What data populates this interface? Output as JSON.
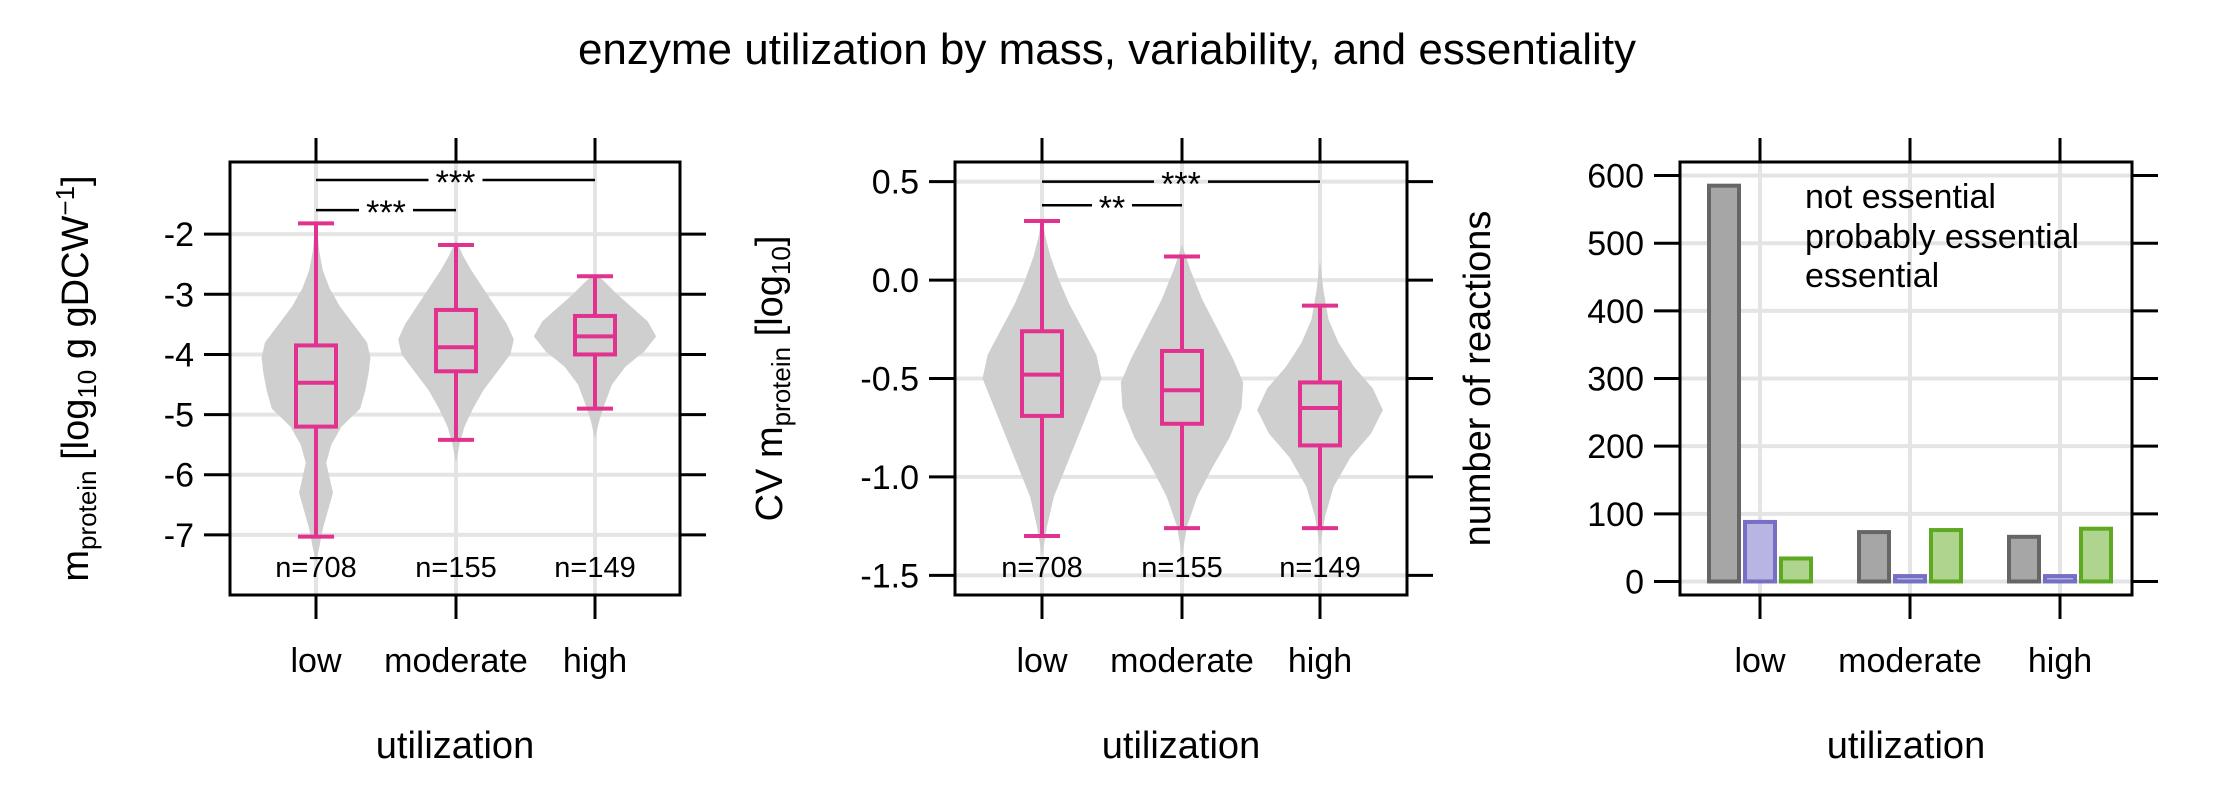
{
  "title": "enzyme utilization by mass, variability, and essentiality",
  "colors": {
    "box": "#e0328e",
    "violin": "#cfcfcf",
    "grid": "#e4e4e4",
    "not_essential": "#666666",
    "not_essential_fill": "#a6a6a6",
    "probably_essential": "#7670c4",
    "probably_essential_fill": "#b8b5e2",
    "essential": "#5ea822",
    "essential_fill": "#aed48e"
  },
  "chart_data": [
    {
      "type": "box",
      "xlabel": "utilization",
      "ylabel": "m",
      "ylabel_sub": "protein",
      "ylabel_rest": " [log",
      "ylabel_sub2": "10",
      "ylabel_tail": " g gDCW",
      "ylabel_sup": "−1",
      "ylabel_close": "]",
      "ylim": [
        -8,
        -0.8
      ],
      "yticks": [
        -2,
        -3,
        -4,
        -5,
        -6,
        -7
      ],
      "ytick_labels": [
        "-2",
        "-3",
        "-4",
        "-5",
        "-6",
        "-7"
      ],
      "categories": [
        "low",
        "moderate",
        "high"
      ],
      "counts": [
        "n=708",
        "n=155",
        "n=149"
      ],
      "boxes": [
        {
          "min": -7.03,
          "q1": -5.2,
          "median": -4.47,
          "q3": -3.85,
          "max": -1.82
        },
        {
          "min": -5.42,
          "q1": -4.28,
          "median": -3.88,
          "q3": -3.26,
          "max": -2.18
        },
        {
          "min": -4.9,
          "q1": -4.0,
          "median": -3.7,
          "q3": -3.36,
          "max": -2.7
        }
      ],
      "violins": [
        {
          "lo": -7.45,
          "hi": -1.8,
          "profile": [
            [
              -7.45,
              0
            ],
            [
              -7.2,
              0.04
            ],
            [
              -6.9,
              0.08
            ],
            [
              -6.6,
              0.14
            ],
            [
              -6.3,
              0.2
            ],
            [
              -6.05,
              0.16
            ],
            [
              -5.8,
              0.12
            ],
            [
              -5.5,
              0.18
            ],
            [
              -5.2,
              0.3
            ],
            [
              -4.9,
              0.52
            ],
            [
              -4.6,
              0.58
            ],
            [
              -4.3,
              0.62
            ],
            [
              -4.05,
              0.64
            ],
            [
              -3.8,
              0.6
            ],
            [
              -3.5,
              0.44
            ],
            [
              -3.2,
              0.28
            ],
            [
              -2.9,
              0.16
            ],
            [
              -2.6,
              0.08
            ],
            [
              -2.3,
              0.04
            ],
            [
              -2.0,
              0.02
            ],
            [
              -1.8,
              0
            ]
          ]
        },
        {
          "lo": -5.8,
          "hi": -2.1,
          "profile": [
            [
              -5.8,
              0
            ],
            [
              -5.5,
              0.04
            ],
            [
              -5.2,
              0.1
            ],
            [
              -4.9,
              0.2
            ],
            [
              -4.6,
              0.32
            ],
            [
              -4.3,
              0.48
            ],
            [
              -4.0,
              0.64
            ],
            [
              -3.75,
              0.68
            ],
            [
              -3.5,
              0.6
            ],
            [
              -3.2,
              0.46
            ],
            [
              -2.9,
              0.32
            ],
            [
              -2.6,
              0.18
            ],
            [
              -2.35,
              0.08
            ],
            [
              -2.1,
              0
            ]
          ]
        },
        {
          "lo": -5.4,
          "hi": -2.65,
          "profile": [
            [
              -5.4,
              0
            ],
            [
              -5.1,
              0.05
            ],
            [
              -4.8,
              0.12
            ],
            [
              -4.5,
              0.2
            ],
            [
              -4.2,
              0.36
            ],
            [
              -3.95,
              0.58
            ],
            [
              -3.7,
              0.72
            ],
            [
              -3.45,
              0.62
            ],
            [
              -3.2,
              0.42
            ],
            [
              -3.0,
              0.26
            ],
            [
              -2.8,
              0.12
            ],
            [
              -2.65,
              0
            ]
          ]
        }
      ],
      "significance": [
        {
          "from": 0,
          "to": 1,
          "label": "***",
          "y": -1.6
        },
        {
          "from": 0,
          "to": 2,
          "label": "***",
          "y": -1.1
        }
      ]
    },
    {
      "type": "box",
      "xlabel": "utilization",
      "ylabel": "CV m",
      "ylabel_sub": "protein",
      "ylabel_rest": " [log",
      "ylabel_sub2": "10",
      "ylabel_tail": "",
      "ylabel_sup": "",
      "ylabel_close": "]",
      "ylim": [
        -1.6,
        0.6
      ],
      "yticks": [
        0.5,
        0.0,
        -0.5,
        -1.0,
        -1.5
      ],
      "ytick_labels": [
        "0.5",
        "0.0",
        "-0.5",
        "-1.0",
        "-1.5"
      ],
      "categories": [
        "low",
        "moderate",
        "high"
      ],
      "counts": [
        "n=708",
        "n=155",
        "n=149"
      ],
      "boxes": [
        {
          "min": -1.3,
          "q1": -0.69,
          "median": -0.48,
          "q3": -0.26,
          "max": 0.3
        },
        {
          "min": -1.26,
          "q1": -0.73,
          "median": -0.56,
          "q3": -0.36,
          "max": 0.12
        },
        {
          "min": -1.26,
          "q1": -0.84,
          "median": -0.65,
          "q3": -0.52,
          "max": -0.13
        }
      ],
      "violins": [
        {
          "lo": -1.4,
          "hi": 0.32,
          "profile": [
            [
              -1.4,
              0
            ],
            [
              -1.25,
              0.06
            ],
            [
              -1.1,
              0.14
            ],
            [
              -0.95,
              0.28
            ],
            [
              -0.8,
              0.42
            ],
            [
              -0.65,
              0.56
            ],
            [
              -0.5,
              0.7
            ],
            [
              -0.38,
              0.64
            ],
            [
              -0.25,
              0.48
            ],
            [
              -0.12,
              0.32
            ],
            [
              0.0,
              0.2
            ],
            [
              0.12,
              0.1
            ],
            [
              0.22,
              0.04
            ],
            [
              0.32,
              0
            ]
          ]
        },
        {
          "lo": -1.4,
          "hi": 0.18,
          "profile": [
            [
              -1.4,
              0
            ],
            [
              -1.25,
              0.06
            ],
            [
              -1.1,
              0.18
            ],
            [
              -0.95,
              0.36
            ],
            [
              -0.8,
              0.56
            ],
            [
              -0.65,
              0.7
            ],
            [
              -0.52,
              0.72
            ],
            [
              -0.4,
              0.6
            ],
            [
              -0.25,
              0.42
            ],
            [
              -0.1,
              0.24
            ],
            [
              0.05,
              0.1
            ],
            [
              0.18,
              0
            ]
          ]
        },
        {
          "lo": -1.35,
          "hi": 0.1,
          "profile": [
            [
              -1.35,
              0
            ],
            [
              -1.2,
              0.06
            ],
            [
              -1.05,
              0.16
            ],
            [
              -0.9,
              0.36
            ],
            [
              -0.78,
              0.6
            ],
            [
              -0.66,
              0.74
            ],
            [
              -0.55,
              0.62
            ],
            [
              -0.44,
              0.4
            ],
            [
              -0.32,
              0.22
            ],
            [
              -0.2,
              0.1
            ],
            [
              -0.05,
              0.04
            ],
            [
              0.1,
              0
            ]
          ]
        }
      ],
      "significance": [
        {
          "from": 0,
          "to": 1,
          "label": "**",
          "y": 0.38
        },
        {
          "from": 0,
          "to": 2,
          "label": "***",
          "y": 0.5
        }
      ]
    },
    {
      "type": "bar",
      "xlabel": "utilization",
      "ylabel": "number of reactions",
      "ylim": [
        -20,
        620
      ],
      "yticks": [
        600,
        500,
        400,
        300,
        200,
        100,
        0
      ],
      "ytick_labels": [
        "600",
        "500",
        "400",
        "300",
        "200",
        "100",
        "0"
      ],
      "categories": [
        "low",
        "moderate",
        "high"
      ],
      "series": [
        {
          "name": "not essential",
          "values": [
            585,
            73,
            66
          ]
        },
        {
          "name": "probably essential",
          "values": [
            88,
            8,
            8
          ]
        },
        {
          "name": "essential",
          "values": [
            34,
            76,
            78
          ]
        }
      ],
      "legend_position": "top-right"
    }
  ]
}
